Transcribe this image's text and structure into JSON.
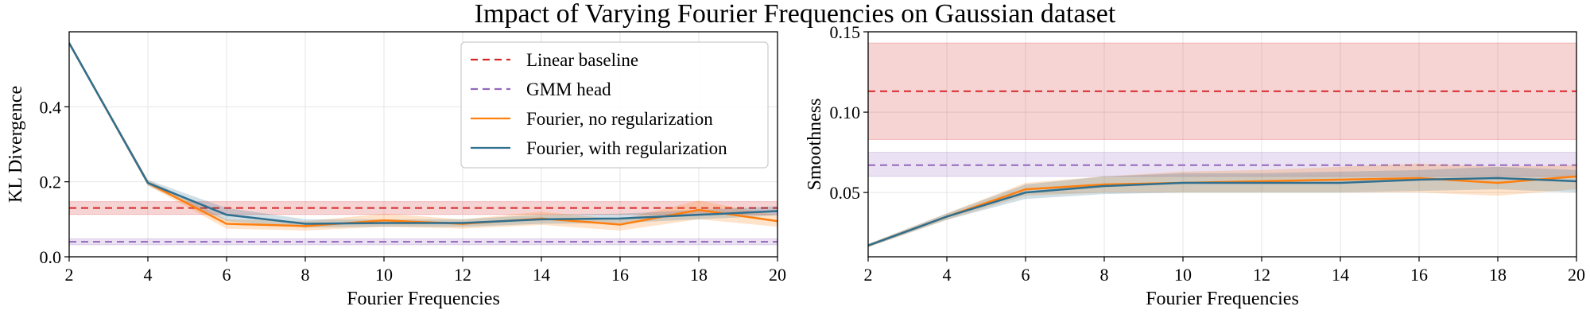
{
  "figure": {
    "title": "Impact of Varying Fourier Frequencies on Gaussian dataset"
  },
  "chart_data": [
    {
      "type": "line",
      "xlabel": "Fourier Frequencies",
      "ylabel": "KL Divergence",
      "xlim": [
        2,
        20
      ],
      "ylim": [
        0,
        0.6
      ],
      "xticks": [
        2,
        4,
        6,
        8,
        10,
        12,
        14,
        16,
        18,
        20
      ],
      "yticks": [
        0.0,
        0.2,
        0.4
      ],
      "ytick_labels": [
        "0.0",
        "0.2",
        "0.4"
      ],
      "grid": true,
      "legend": {
        "position": "top-right"
      },
      "bands": [
        {
          "name": "Linear baseline",
          "color": "#d62728",
          "center": 0.13,
          "lower": 0.113,
          "upper": 0.147
        },
        {
          "name": "GMM head",
          "color": "#9467bd",
          "center": 0.04,
          "lower": 0.032,
          "upper": 0.048
        }
      ],
      "series": [
        {
          "name": "Fourier, no regularization",
          "color": "#ff7f0e",
          "x": [
            2,
            4,
            6,
            8,
            10,
            12,
            14,
            16,
            18,
            20
          ],
          "y": [
            0.57,
            0.197,
            0.088,
            0.082,
            0.097,
            0.088,
            0.102,
            0.086,
            0.125,
            0.095
          ],
          "lower": [
            0.565,
            0.19,
            0.075,
            0.07,
            0.08,
            0.075,
            0.085,
            0.07,
            0.1,
            0.08
          ],
          "upper": [
            0.575,
            0.205,
            0.1,
            0.095,
            0.115,
            0.1,
            0.12,
            0.1,
            0.15,
            0.11
          ]
        },
        {
          "name": "Fourier, with regularization",
          "color": "#2f6f8f",
          "x": [
            2,
            4,
            6,
            8,
            10,
            12,
            14,
            16,
            18,
            20
          ],
          "y": [
            0.57,
            0.197,
            0.112,
            0.088,
            0.09,
            0.09,
            0.1,
            0.102,
            0.112,
            0.122
          ],
          "lower": [
            0.565,
            0.19,
            0.095,
            0.078,
            0.08,
            0.08,
            0.088,
            0.09,
            0.1,
            0.11
          ],
          "upper": [
            0.575,
            0.205,
            0.13,
            0.1,
            0.1,
            0.1,
            0.112,
            0.115,
            0.125,
            0.135
          ]
        }
      ]
    },
    {
      "type": "line",
      "xlabel": "Fourier Frequencies",
      "ylabel": "Smoothness",
      "xlim": [
        2,
        20
      ],
      "ylim": [
        0.01,
        0.15
      ],
      "xticks": [
        2,
        4,
        6,
        8,
        10,
        12,
        14,
        16,
        18,
        20
      ],
      "yticks": [
        0.05,
        0.1,
        0.15
      ],
      "ytick_labels": [
        "0.05",
        "0.10",
        "0.15"
      ],
      "grid": true,
      "bands": [
        {
          "name": "Linear baseline",
          "color": "#d62728",
          "center": 0.113,
          "lower": 0.083,
          "upper": 0.143
        },
        {
          "name": "GMM head",
          "color": "#9467bd",
          "center": 0.067,
          "lower": 0.06,
          "upper": 0.075
        }
      ],
      "series": [
        {
          "name": "Fourier, no regularization",
          "color": "#ff7f0e",
          "x": [
            2,
            4,
            6,
            8,
            10,
            12,
            14,
            16,
            18,
            20
          ],
          "y": [
            0.017,
            0.035,
            0.052,
            0.055,
            0.056,
            0.057,
            0.058,
            0.059,
            0.056,
            0.06
          ],
          "lower": [
            0.016,
            0.033,
            0.048,
            0.05,
            0.05,
            0.05,
            0.05,
            0.05,
            0.048,
            0.052
          ],
          "upper": [
            0.018,
            0.037,
            0.056,
            0.06,
            0.063,
            0.064,
            0.066,
            0.068,
            0.066,
            0.067
          ]
        },
        {
          "name": "Fourier, with regularization",
          "color": "#2f6f8f",
          "x": [
            2,
            4,
            6,
            8,
            10,
            12,
            14,
            16,
            18,
            20
          ],
          "y": [
            0.017,
            0.035,
            0.05,
            0.054,
            0.056,
            0.056,
            0.056,
            0.058,
            0.059,
            0.057
          ],
          "lower": [
            0.016,
            0.033,
            0.046,
            0.049,
            0.05,
            0.05,
            0.05,
            0.051,
            0.052,
            0.05
          ],
          "upper": [
            0.018,
            0.037,
            0.055,
            0.06,
            0.062,
            0.062,
            0.063,
            0.064,
            0.066,
            0.064
          ]
        }
      ]
    }
  ]
}
